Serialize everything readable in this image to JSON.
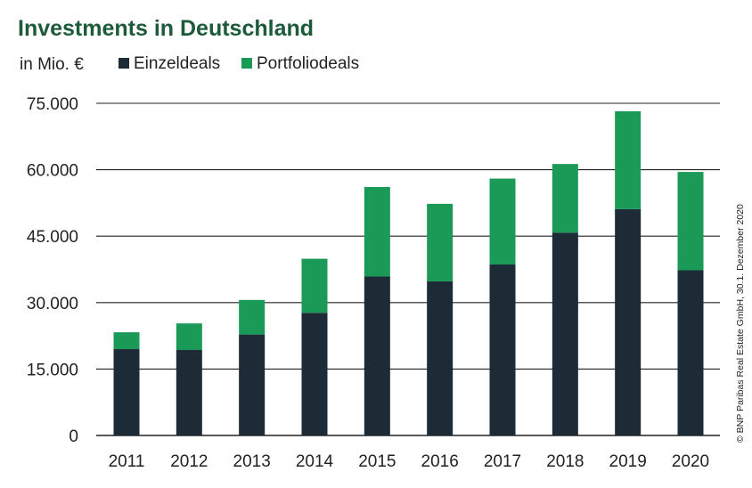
{
  "chart_data": {
    "type": "bar",
    "stacked": true,
    "title": "Investments in Deutschland",
    "unit_label": "in Mio. €",
    "categories": [
      "2011",
      "2012",
      "2013",
      "2014",
      "2015",
      "2016",
      "2017",
      "2018",
      "2019",
      "2020"
    ],
    "series": [
      {
        "name": "Einzeldeals",
        "color": "#1c2b36",
        "values": [
          19500,
          19300,
          22800,
          27700,
          35900,
          34800,
          38600,
          45800,
          51100,
          37300
        ]
      },
      {
        "name": "Portfoliodeals",
        "color": "#1a9a56",
        "values": [
          3800,
          6000,
          7800,
          12200,
          20200,
          17500,
          19400,
          15500,
          22100,
          22200
        ]
      }
    ],
    "yticks": [
      "0",
      "15.000",
      "30.000",
      "45.000",
      "60.000",
      "75.000"
    ],
    "ytick_values": [
      0,
      15000,
      30000,
      45000,
      60000,
      75000
    ],
    "ylim": [
      0,
      75000
    ],
    "grid": true,
    "legend_position": "top-left",
    "source_note": "© BNP Paribas Real Estate GmbH, 30.1. Dezember 2020"
  },
  "colors": {
    "title": "#1d5a3a",
    "text": "#222222",
    "grid": "#222222"
  }
}
